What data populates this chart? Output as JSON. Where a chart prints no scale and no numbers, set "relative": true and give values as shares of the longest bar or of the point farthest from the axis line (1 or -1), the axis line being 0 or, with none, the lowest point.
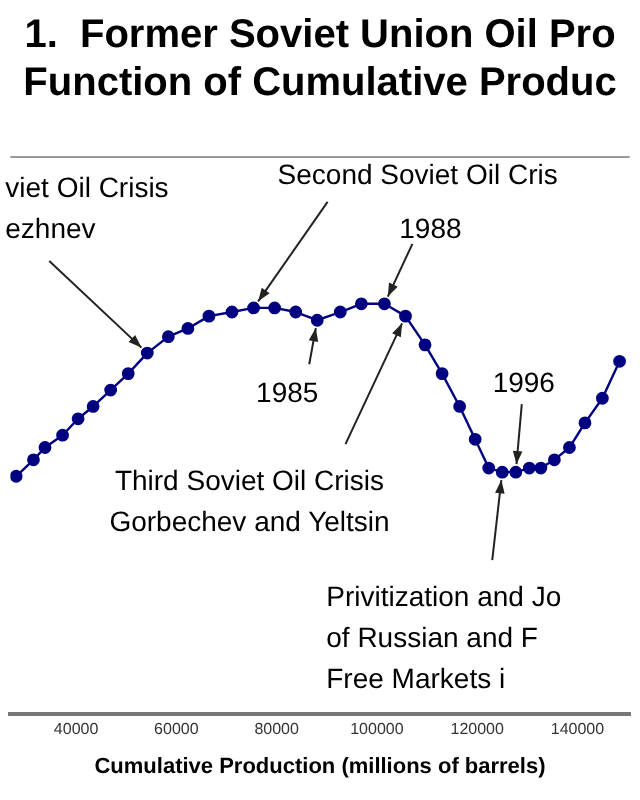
{
  "chart_data": {
    "type": "line",
    "title": "1.  Former Soviet Union Oil Pro\nFunction of Cumulative Produc",
    "xlabel": "Cumulative Production (millions of barrels)",
    "relative": true,
    "marker": "circle",
    "grid": false,
    "legend": false,
    "x": [
      28050,
      31500,
      33800,
      37300,
      40400,
      43400,
      46900,
      50400,
      54200,
      58400,
      62300,
      66500,
      71100,
      75400,
      79600,
      83800,
      88100,
      92700,
      96900,
      101500,
      105700,
      109600,
      113000,
      116500,
      119600,
      122300,
      125000,
      127700,
      130400,
      132700,
      135400,
      138400,
      141500,
      144970,
      148400
    ],
    "xlim": [
      26900,
      150400
    ],
    "xticks": [
      40000,
      60000,
      80000,
      100000,
      120000,
      140000
    ],
    "series": [
      {
        "color": "#000080",
        "values": [
          0.58,
          0.62,
          0.65,
          0.68,
          0.72,
          0.75,
          0.79,
          0.83,
          0.88,
          0.92,
          0.94,
          0.97,
          0.98,
          0.99,
          0.99,
          0.98,
          0.96,
          0.98,
          1,
          1,
          0.97,
          0.9,
          0.83,
          0.75,
          0.67,
          0.6,
          0.59,
          0.59,
          0.6,
          0.6,
          0.62,
          0.65,
          0.71,
          0.77,
          0.86
        ]
      }
    ],
    "annotations": [
      {
        "text": "viet Oil Crisis\nezhnev",
        "x": 54200,
        "y": 0.88
      },
      {
        "text": "Second Soviet Oil Cris",
        "x": 75400,
        "y": 0.99
      },
      {
        "text": "1988",
        "x": 101500,
        "y": 1
      },
      {
        "text": "1985",
        "x": 88100,
        "y": 0.96
      },
      {
        "text": "Third Soviet Oil Crisis\nGorbechev and Yeltsin",
        "x": 105700,
        "y": 0.97
      },
      {
        "text": "1996",
        "x": 127700,
        "y": 0.59
      },
      {
        "text": "Privitization and Jo\nof Russian and F\nFree Markets i",
        "x": 125000,
        "y": 0.59
      }
    ]
  }
}
